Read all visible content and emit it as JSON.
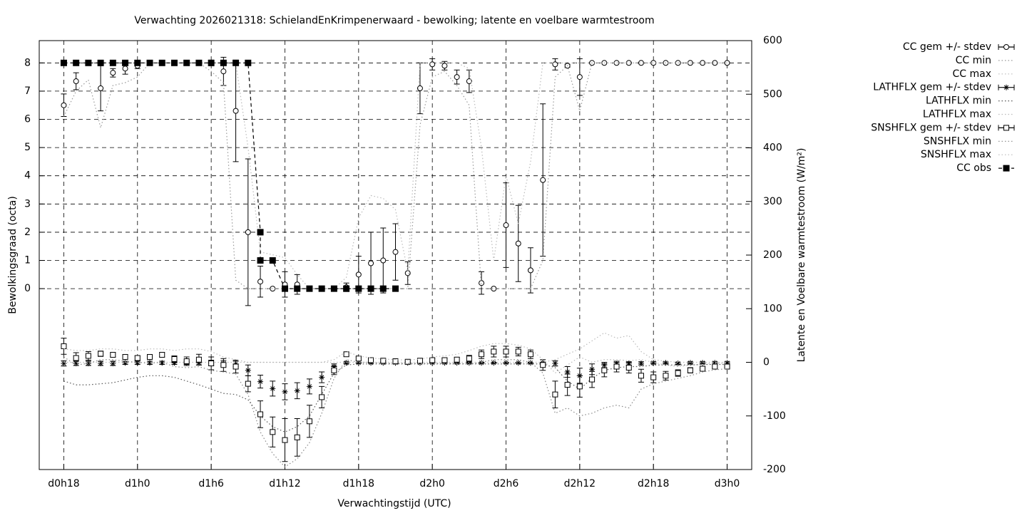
{
  "chart_data": {
    "type": "errorbar",
    "title": "Verwachting 2026021318: SchielandEnKrimpenerwaard - bewolking; latente en voelbare warmtestroom",
    "xlabel": "Verwachtingstijd (UTC)",
    "ylabel": "Bewolkingsgraad (octa)",
    "y2label": "Latente en Voelbare warmtestroom (W/m²)",
    "x": [
      0,
      1,
      2,
      3,
      4,
      5,
      6,
      7,
      8,
      9,
      10,
      11,
      12,
      13,
      14,
      15,
      16,
      17,
      18,
      19,
      20,
      21,
      22,
      23,
      24,
      25,
      26,
      27,
      28,
      29,
      30,
      31,
      32,
      33,
      34,
      35,
      36,
      37,
      38,
      39,
      40,
      41,
      42,
      43,
      44,
      45,
      46,
      47,
      48,
      49,
      50,
      51,
      52,
      53,
      54
    ],
    "xlim": [
      -2,
      56
    ],
    "xticks": [
      {
        "value": 0,
        "label": "d0h18"
      },
      {
        "value": 6,
        "label": "d1h0"
      },
      {
        "value": 12,
        "label": "d1h6"
      },
      {
        "value": 18,
        "label": "d1h12"
      },
      {
        "value": 24,
        "label": "d1h18"
      },
      {
        "value": 30,
        "label": "d2h0"
      },
      {
        "value": 36,
        "label": "d2h6"
      },
      {
        "value": 42,
        "label": "d2h12"
      },
      {
        "value": 48,
        "label": "d2h18"
      },
      {
        "value": 54,
        "label": "d3h0"
      }
    ],
    "ylim": [
      -6.41,
      8.79
    ],
    "yticks": [
      0,
      1,
      2,
      3,
      4,
      5,
      6,
      7,
      8
    ],
    "y2lim": [
      -200,
      600
    ],
    "y2ticks": [
      -200,
      -100,
      0,
      100,
      200,
      300,
      400,
      500,
      600
    ],
    "grid": true,
    "series": [
      {
        "name": "CC gem +/- stdev",
        "color": "#000000",
        "marker": "circle",
        "values": [
          6.5,
          7.35,
          8,
          7.1,
          7.65,
          7.8,
          7.9,
          8,
          8,
          8,
          8,
          8,
          8,
          7.7,
          6.3,
          2.0,
          0.25,
          0,
          0.15,
          0.15,
          0,
          0,
          0,
          0.05,
          0.5,
          0.9,
          1.0,
          1.3,
          0.55,
          7.1,
          7.95,
          7.9,
          7.5,
          7.35,
          0.2,
          0,
          2.25,
          1.6,
          0.65,
          3.85,
          7.95,
          7.9,
          7.5,
          8,
          8,
          8,
          8,
          8,
          8,
          8,
          8,
          8,
          8,
          8,
          8
        ],
        "errors": [
          0.4,
          0.3,
          0.05,
          0.8,
          0.15,
          0.2,
          0.1,
          0,
          0,
          0,
          0,
          0,
          0.1,
          0.5,
          1.8,
          2.6,
          0.55,
          0,
          0.45,
          0.35,
          0,
          0,
          0,
          0.15,
          0.65,
          1.1,
          1.15,
          1.0,
          0.4,
          0.9,
          0.2,
          0.15,
          0.25,
          0.4,
          0.4,
          0,
          1.5,
          1.35,
          0.8,
          2.7,
          0.2,
          0.05,
          0.65,
          0,
          0,
          0,
          0,
          0,
          0,
          0,
          0,
          0,
          0,
          0,
          0
        ]
      },
      {
        "name": "CC min",
        "color": "#999999",
        "line": "dotted",
        "values": [
          6.1,
          7.0,
          7.4,
          5.7,
          7.2,
          7.3,
          7.5,
          8,
          8,
          8,
          8,
          8,
          7.7,
          7.3,
          0.3,
          0,
          0,
          0,
          0,
          0,
          0,
          0,
          0,
          0,
          0,
          0,
          0,
          0,
          0,
          5.8,
          7.5,
          7.7,
          7.2,
          6.5,
          0,
          0,
          0,
          0,
          0,
          1.0,
          7.5,
          7.9,
          6.3,
          8,
          8,
          8,
          8,
          8,
          8,
          8,
          8,
          8,
          8,
          8,
          8
        ]
      },
      {
        "name": "CC max",
        "color": "#bbbbbb",
        "line": "dotted",
        "values": [
          8,
          8,
          8,
          8,
          8,
          8,
          8,
          8,
          8,
          8,
          8,
          8,
          8,
          8,
          8,
          5,
          1.3,
          1.2,
          1.1,
          0.5,
          0,
          0,
          0,
          0.4,
          2.5,
          3.3,
          3.2,
          2.8,
          0.6,
          8,
          8,
          8,
          8,
          7.8,
          5,
          1,
          4,
          2.3,
          4.5,
          8,
          8,
          8,
          8,
          8,
          8,
          8,
          8,
          8,
          8,
          8,
          8,
          8,
          8,
          8,
          8
        ]
      },
      {
        "name": "LATHFLX gem +/- stdev",
        "color": "#000000",
        "marker": "star",
        "axis": "y2",
        "values": [
          -2,
          -2,
          -2,
          -2,
          -2,
          -1,
          -1,
          -1,
          -1,
          -1,
          -1,
          -1,
          -1,
          -2,
          -3,
          -15,
          -36,
          -49,
          -55,
          -53,
          -45,
          -28,
          -8,
          -1,
          -1,
          -1,
          -1,
          -1,
          -1,
          -1,
          -1,
          -1,
          -1,
          -1,
          -1,
          -1,
          -1,
          -1,
          -1,
          -1,
          -2,
          -18,
          -25,
          -13,
          -5,
          -3,
          -2,
          -2,
          -1,
          -1,
          -2,
          -1,
          -1,
          -1,
          -1
        ],
        "errors": [
          5,
          4,
          4,
          4,
          4,
          3,
          3,
          3,
          3,
          3,
          3,
          4,
          5,
          5,
          5,
          10,
          12,
          14,
          15,
          15,
          14,
          10,
          5,
          2,
          1,
          1,
          1,
          1,
          1,
          1,
          1,
          1,
          1,
          1,
          1,
          1,
          1,
          1,
          1,
          1,
          5,
          10,
          14,
          10,
          5,
          3,
          3,
          3,
          2,
          2,
          2,
          2,
          2,
          2,
          2
        ]
      },
      {
        "name": "LATHFLX min",
        "color": "#555555",
        "line": "dotted",
        "axis": "y2",
        "values": [
          -35,
          -42,
          -42,
          -40,
          -38,
          -33,
          -28,
          -25,
          -25,
          -28,
          -35,
          -42,
          -50,
          -58,
          -60,
          -70,
          -100,
          -120,
          -130,
          -120,
          -100,
          -60,
          -20,
          -5,
          -3,
          -3,
          -3,
          -3,
          -3,
          -3,
          -3,
          -3,
          -3,
          -3,
          -3,
          -3,
          -3,
          -3,
          -3,
          -3,
          -10,
          -35,
          -50,
          -30,
          -15,
          -10,
          -8,
          -8,
          -5,
          -5,
          -5,
          -5,
          -4,
          -4,
          -4
        ]
      },
      {
        "name": "LATHFLX max",
        "color": "#bbbbbb",
        "line": "dotted",
        "axis": "y2",
        "values": [
          0,
          0,
          0,
          0,
          0,
          0,
          0,
          0,
          0,
          0,
          0,
          0,
          0,
          0,
          0,
          0,
          0,
          0,
          0,
          0,
          0,
          0,
          0,
          0,
          0,
          0,
          0,
          0,
          0,
          0,
          0,
          0,
          0,
          0,
          0,
          0,
          0,
          0,
          0,
          0,
          5,
          15,
          25,
          40,
          55,
          45,
          50,
          20,
          5,
          2,
          0,
          0,
          0,
          0,
          0
        ]
      },
      {
        "name": "SNSHFLX gem +/- stdev",
        "color": "#000000",
        "marker": "square",
        "axis": "y2",
        "values": [
          30,
          8,
          12,
          16,
          14,
          10,
          8,
          10,
          14,
          6,
          2,
          5,
          -2,
          -5,
          -8,
          -40,
          -97,
          -130,
          -145,
          -140,
          -110,
          -65,
          -15,
          15,
          7,
          4,
          3,
          2,
          1,
          3,
          4,
          4,
          5,
          7,
          15,
          20,
          20,
          20,
          15,
          -5,
          -60,
          -42,
          -45,
          -32,
          -15,
          -8,
          -10,
          -25,
          -28,
          -25,
          -20,
          -15,
          -12,
          -8,
          -8
        ],
        "errors": [
          15,
          10,
          8,
          5,
          4,
          4,
          4,
          4,
          4,
          6,
          8,
          10,
          12,
          12,
          12,
          15,
          25,
          28,
          40,
          35,
          30,
          20,
          8,
          3,
          3,
          2,
          2,
          2,
          2,
          3,
          3,
          3,
          4,
          6,
          8,
          10,
          10,
          8,
          8,
          10,
          25,
          20,
          20,
          15,
          12,
          10,
          10,
          12,
          10,
          8,
          6,
          5,
          4,
          3,
          3
        ]
      },
      {
        "name": "SNSHFLX min",
        "color": "#888888",
        "line": "dotted",
        "axis": "y2",
        "values": [
          10,
          -5,
          -2,
          5,
          5,
          2,
          0,
          -2,
          0,
          -8,
          -10,
          -8,
          -15,
          -18,
          -22,
          -60,
          -130,
          -170,
          -195,
          -180,
          -150,
          -95,
          -30,
          5,
          0,
          0,
          -2,
          -2,
          -2,
          -2,
          -2,
          -2,
          -2,
          -3,
          0,
          5,
          5,
          5,
          0,
          -20,
          -95,
          -85,
          -100,
          -95,
          -85,
          -80,
          -85,
          -50,
          -40,
          -35,
          -30,
          -25,
          -18,
          -14,
          -12
        ]
      },
      {
        "name": "SNSHFLX max",
        "color": "#bbbbbb",
        "line": "dotted",
        "axis": "y2",
        "values": [
          25,
          22,
          22,
          25,
          25,
          22,
          22,
          25,
          25,
          22,
          25,
          25,
          20,
          10,
          5,
          0,
          0,
          0,
          0,
          0,
          0,
          0,
          5,
          20,
          12,
          8,
          6,
          5,
          4,
          6,
          10,
          12,
          15,
          22,
          30,
          35,
          35,
          32,
          25,
          5,
          -20,
          -5,
          10,
          0,
          5,
          5,
          3,
          5,
          0,
          -5,
          -8,
          -5,
          -4,
          -2,
          -2
        ]
      },
      {
        "name": "CC obs",
        "color": "#000000",
        "marker": "filled-square",
        "line": "dashed",
        "x": [
          0,
          1,
          2,
          3,
          4,
          5,
          6,
          7,
          8,
          9,
          10,
          11,
          12,
          13,
          14,
          15,
          16,
          16,
          17,
          18,
          19,
          20,
          21,
          22,
          23,
          24,
          25,
          26,
          27
        ],
        "values": [
          8,
          8,
          8,
          8,
          8,
          8,
          8,
          8,
          8,
          8,
          8,
          8,
          8,
          8,
          8,
          8,
          2,
          1,
          1,
          0,
          0,
          0,
          0,
          0,
          0,
          0,
          0,
          0,
          0
        ]
      }
    ]
  }
}
